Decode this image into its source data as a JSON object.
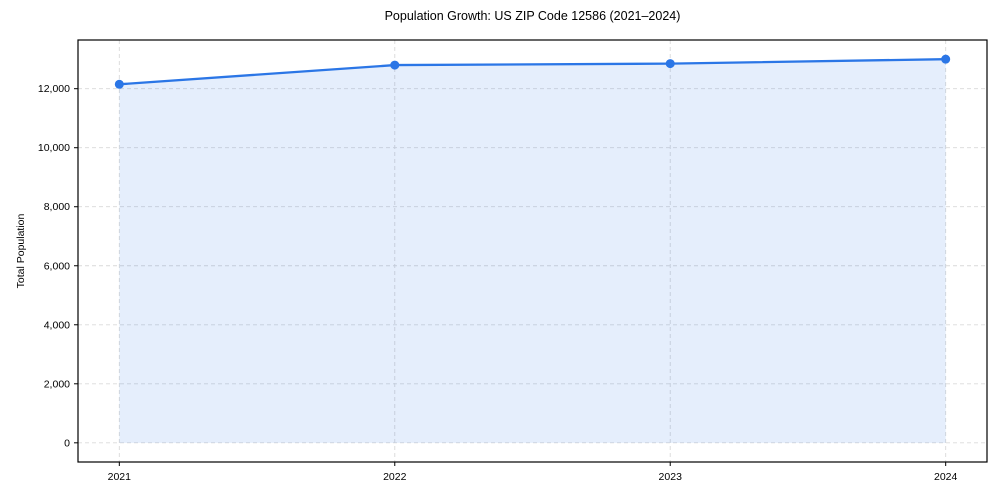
{
  "chart_data": {
    "type": "line",
    "title": "Population Growth: US ZIP Code 12586 (2021–2024)",
    "xlabel": "",
    "ylabel": "Total Population",
    "x": [
      2021,
      2022,
      2023,
      2024
    ],
    "xtick_labels": [
      "2021",
      "2022",
      "2023",
      "2024"
    ],
    "series": [
      {
        "name": "Total Population",
        "values": [
          12150,
          12800,
          12850,
          13000
        ]
      }
    ],
    "yticks": [
      0,
      2000,
      4000,
      6000,
      8000,
      10000,
      12000
    ],
    "ytick_labels": [
      "0",
      "2,000",
      "4,000",
      "6,000",
      "8,000",
      "10,000",
      "12,000"
    ],
    "xlim": [
      2020.85,
      2024.15
    ],
    "ylim": [
      -650,
      13650
    ],
    "grid": true,
    "grid_linestyle": "dashed",
    "legend_position": "none",
    "marker_style": "circle",
    "colors": {
      "line": "#2b76e6",
      "marker": "#2b76e6",
      "fill": "#2b76e6",
      "fill_opacity": 0.12,
      "grid": "#d9d9d9",
      "spine": "#000000",
      "text": "#000000",
      "background": "#ffffff"
    }
  }
}
